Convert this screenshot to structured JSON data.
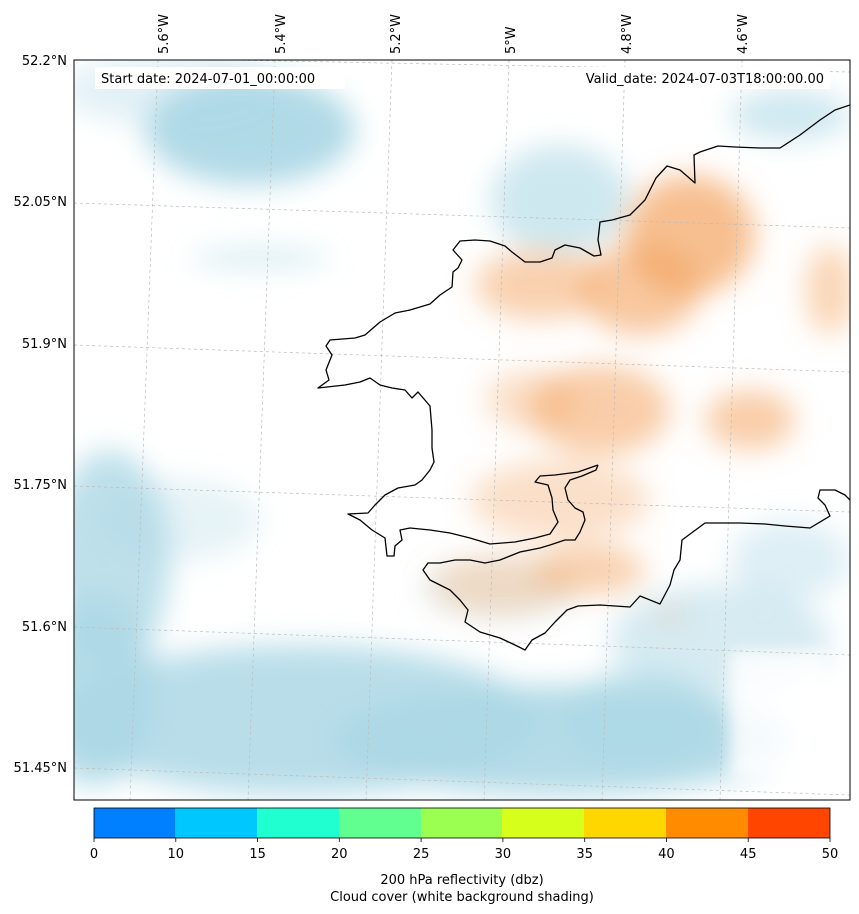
{
  "map": {
    "start_date": "Start date: 2024-07-01_00:00:00",
    "valid_date": "Valid_date: 2024-07-03T18:00:00.00",
    "lon_labels": [
      "5.6°W",
      "5.4°W",
      "5.2°W",
      "5°W",
      "4.8°W",
      "4.6°W"
    ],
    "lat_labels": [
      "52.2°N",
      "52.05°N",
      "51.9°N",
      "51.75°N",
      "51.6°N",
      "51.45°N"
    ],
    "colors": {
      "cloud": "#add8e6",
      "reflectivity_low": "#f4a460",
      "coast": "#000000"
    }
  },
  "colorbar": {
    "ticks": [
      "0",
      "10",
      "15",
      "20",
      "25",
      "30",
      "35",
      "40",
      "45",
      "50"
    ],
    "colors": [
      "#007fff",
      "#00c8ff",
      "#20ffd0",
      "#60ff8f",
      "#9aff50",
      "#d6ff1c",
      "#ffd700",
      "#ff8c00",
      "#ff4500"
    ],
    "label_line1": "200 hPa reflectivity (dbz)",
    "label_line2": "Cloud cover (white background shading)"
  }
}
